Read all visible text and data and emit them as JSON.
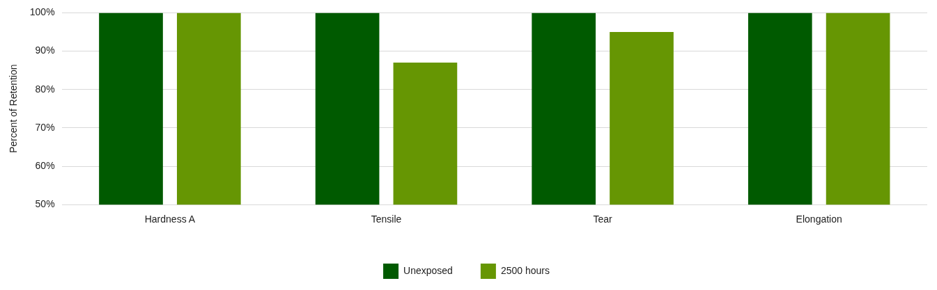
{
  "chart_data": {
    "type": "bar",
    "ylabel": "Percent of Retention",
    "categories": [
      "Hardness A",
      "Tensile",
      "Tear",
      "Elongation"
    ],
    "series": [
      {
        "name": "Unexposed",
        "color": "#005a00",
        "values": [
          100,
          100,
          100,
          100
        ]
      },
      {
        "name": "2500 hours",
        "color": "#669603",
        "values": [
          100,
          87,
          95,
          100
        ]
      }
    ],
    "ylim": [
      50,
      100
    ],
    "yticks": [
      {
        "value": 50,
        "label": "50%"
      },
      {
        "value": 60,
        "label": "60%"
      },
      {
        "value": 70,
        "label": "70%"
      },
      {
        "value": 80,
        "label": "80%"
      },
      {
        "value": 90,
        "label": "90%"
      },
      {
        "value": 100,
        "label": "100%"
      }
    ],
    "grid": "y",
    "legend": "bottom"
  }
}
